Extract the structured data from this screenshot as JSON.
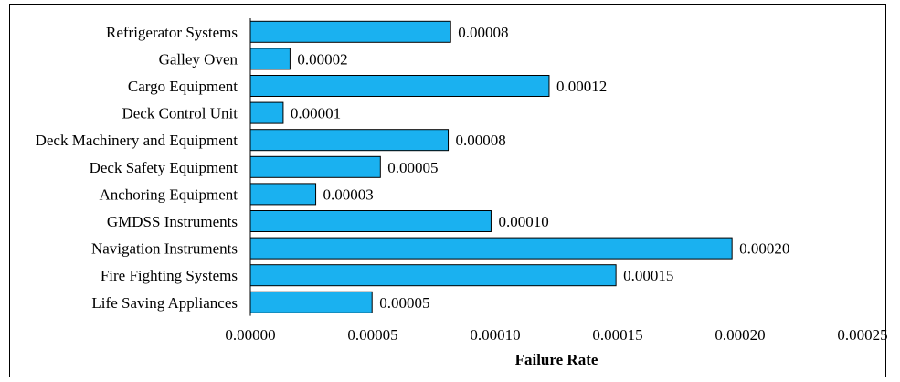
{
  "chart_data": {
    "type": "bar",
    "orientation": "horizontal",
    "title": "",
    "xlabel": "Failure Rate",
    "ylabel": "",
    "xlim": [
      0,
      0.00025
    ],
    "x_ticks": [
      "0.00000",
      "0.00005",
      "0.00010",
      "0.00015",
      "0.00020",
      "0.00025"
    ],
    "x_tick_values": [
      0,
      5e-05,
      0.0001,
      0.00015,
      0.0002,
      0.00025
    ],
    "grid": false,
    "legend": "none",
    "bar_color": "#1AB1F0",
    "categories": [
      "Refrigerator Systems",
      "Galley Oven",
      "Cargo Equipment",
      "Deck Control Unit",
      "Deck Machinery and Equipment",
      "Deck Safety Equipment",
      "Anchoring Equipment",
      "GMDSS Instruments",
      "Navigation Instruments",
      "Fire Fighting Systems",
      "Life Saving Appliances"
    ],
    "values": [
      8e-05,
      2e-05,
      0.00012,
      1e-05,
      8e-05,
      5e-05,
      3e-05,
      0.0001,
      0.0002,
      0.00015,
      5e-05
    ],
    "data_labels": [
      "0.00008",
      "0.00002",
      "0.00012",
      "0.00001",
      "0.00008",
      "0.00005",
      "0.00003",
      "0.00010",
      "0.00020",
      "0.00015",
      "0.00005"
    ],
    "bar_lengths": [
      8.18e-05,
      1.62e-05,
      0.000122,
      1.34e-05,
      8.08e-05,
      5.31e-05,
      2.67e-05,
      9.83e-05,
      0.0001967,
      0.0001493,
      4.97e-05
    ]
  }
}
